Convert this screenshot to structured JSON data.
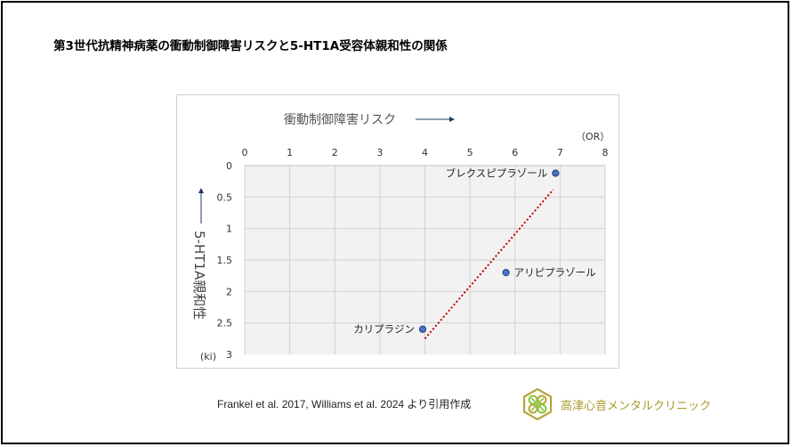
{
  "title": "第3世代抗精神病薬の衝動制御障害リスクと5-HT1A受容体親和性の関係",
  "citation": "Frankel et al. 2017, Williams et al. 2024 より引用作成",
  "clinic_name": "高津心音メンタルクリニック",
  "colors": {
    "point_fill": "#4a72c4",
    "point_stroke": "#1f3f82",
    "trendline": "#c00000",
    "plot_bg": "#f2f2f2",
    "grid": "#d0d0d0",
    "logo_gold": "#b8a43c",
    "logo_green": "#8cc63f"
  },
  "chart_data": {
    "type": "scatter",
    "x_axis": {
      "label": "衝動制御障害リスク",
      "unit": "（OR）",
      "range": [
        0,
        8
      ],
      "ticks": [
        "0",
        "1",
        "2",
        "3",
        "4",
        "5",
        "6",
        "7",
        "8"
      ],
      "position": "top",
      "arrow": "→"
    },
    "y_axis": {
      "label": "5-HT1A親和性",
      "unit": "(ki)",
      "range": [
        0,
        3
      ],
      "reversed": true,
      "ticks": [
        "0",
        "0.5",
        "1",
        "1.5",
        "2",
        "2.5",
        "3"
      ],
      "arrow": "↑"
    },
    "grid": true,
    "points": [
      {
        "label": "ブレクスピプラゾール",
        "x": 6.9,
        "y": 0.12
      },
      {
        "label": "アリピプラゾール",
        "x": 5.8,
        "y": 1.7
      },
      {
        "label": "カリプラジン",
        "x": 3.95,
        "y": 2.6
      }
    ],
    "trendline": {
      "style": "dotted",
      "x": [
        4.0,
        6.85
      ],
      "y": [
        2.75,
        0.38
      ]
    }
  }
}
